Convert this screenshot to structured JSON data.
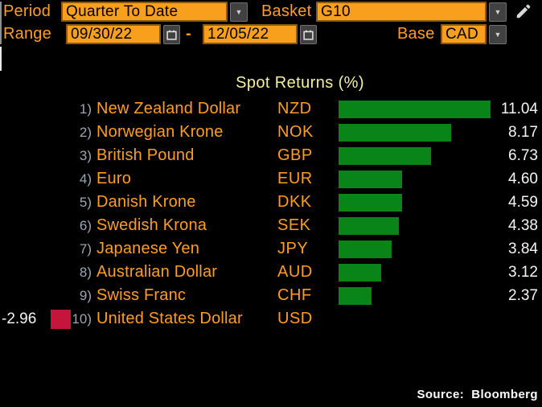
{
  "controls": {
    "period_label": "Period",
    "period_value": "Quarter To Date",
    "basket_label": "Basket",
    "basket_value": "G10",
    "range_label": "Range",
    "range_start": "09/30/22",
    "range_separator": "-",
    "range_end": "12/05/22",
    "base_label": "Base",
    "base_value": "CAD"
  },
  "icons": {
    "dropdown_arrow": "▼"
  },
  "chart_data": {
    "type": "bar",
    "orientation": "horizontal",
    "title": "Spot Returns (%)",
    "value_unit": "%",
    "xlim": [
      -2.96,
      11.04
    ],
    "grid": false,
    "legend": false,
    "positive_color": "#088418",
    "negative_color": "#c5153a",
    "rows": [
      {
        "rank": "1)",
        "name": "New Zealand Dollar",
        "code": "NZD",
        "value": 11.04
      },
      {
        "rank": "2)",
        "name": "Norwegian Krone",
        "code": "NOK",
        "value": 8.17
      },
      {
        "rank": "3)",
        "name": "British Pound",
        "code": "GBP",
        "value": 6.73
      },
      {
        "rank": "4)",
        "name": "Euro",
        "code": "EUR",
        "value": 4.6
      },
      {
        "rank": "5)",
        "name": "Danish Krone",
        "code": "DKK",
        "value": 4.59
      },
      {
        "rank": "6)",
        "name": "Swedish Krona",
        "code": "SEK",
        "value": 4.38
      },
      {
        "rank": "7)",
        "name": "Japanese Yen",
        "code": "JPY",
        "value": 3.84
      },
      {
        "rank": "8)",
        "name": "Australian Dollar",
        "code": "AUD",
        "value": 3.12
      },
      {
        "rank": "9)",
        "name": "Swiss Franc",
        "code": "CHF",
        "value": 2.37
      },
      {
        "rank": "10)",
        "name": "United States Dollar",
        "code": "USD",
        "value": -2.96
      }
    ]
  },
  "footer": {
    "source": "Source:  Bloomberg"
  },
  "colors": {
    "background": "#000000",
    "label_orange": "#ff9e21",
    "field_orange": "#f8a01d",
    "title_yellow": "#f6f0a2",
    "rank_gray": "#9ba6b2",
    "value_white": "#f5f5f5"
  }
}
